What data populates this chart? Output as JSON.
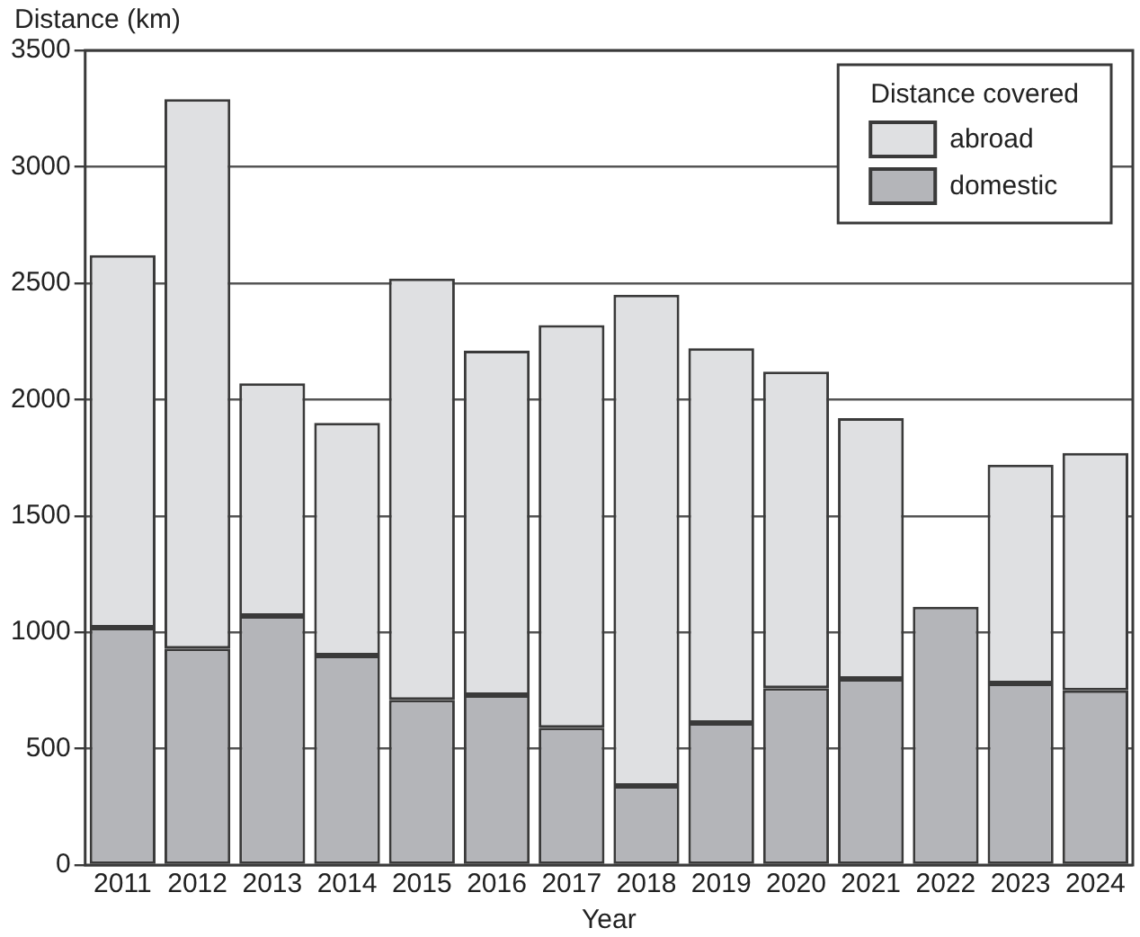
{
  "chart_data": {
    "type": "bar",
    "stacked": true,
    "ylabel": "Distance (km)",
    "xlabel": "Year",
    "legend_title": "Distance covered",
    "legend": "top right",
    "grid": "y",
    "categories": [
      "2011",
      "2012",
      "2013",
      "2014",
      "2015",
      "2016",
      "2017",
      "2018",
      "2019",
      "2020",
      "2021",
      "2022",
      "2023",
      "2024"
    ],
    "series": [
      {
        "name": "domestic",
        "color": "#b4b5b9",
        "values": [
          1020,
          930,
          1070,
          900,
          710,
          730,
          590,
          340,
          610,
          760,
          800,
          1110,
          780,
          750
        ]
      },
      {
        "name": "abroad",
        "color": "#dfe0e2",
        "values": [
          1600,
          2360,
          1000,
          1000,
          1810,
          1480,
          1730,
          2110,
          1610,
          1360,
          1120,
          0,
          940,
          1020
        ]
      }
    ],
    "ylim": [
      0,
      3500
    ],
    "yticks": [
      0,
      500,
      1000,
      1500,
      2000,
      2500,
      3000,
      3500
    ]
  }
}
